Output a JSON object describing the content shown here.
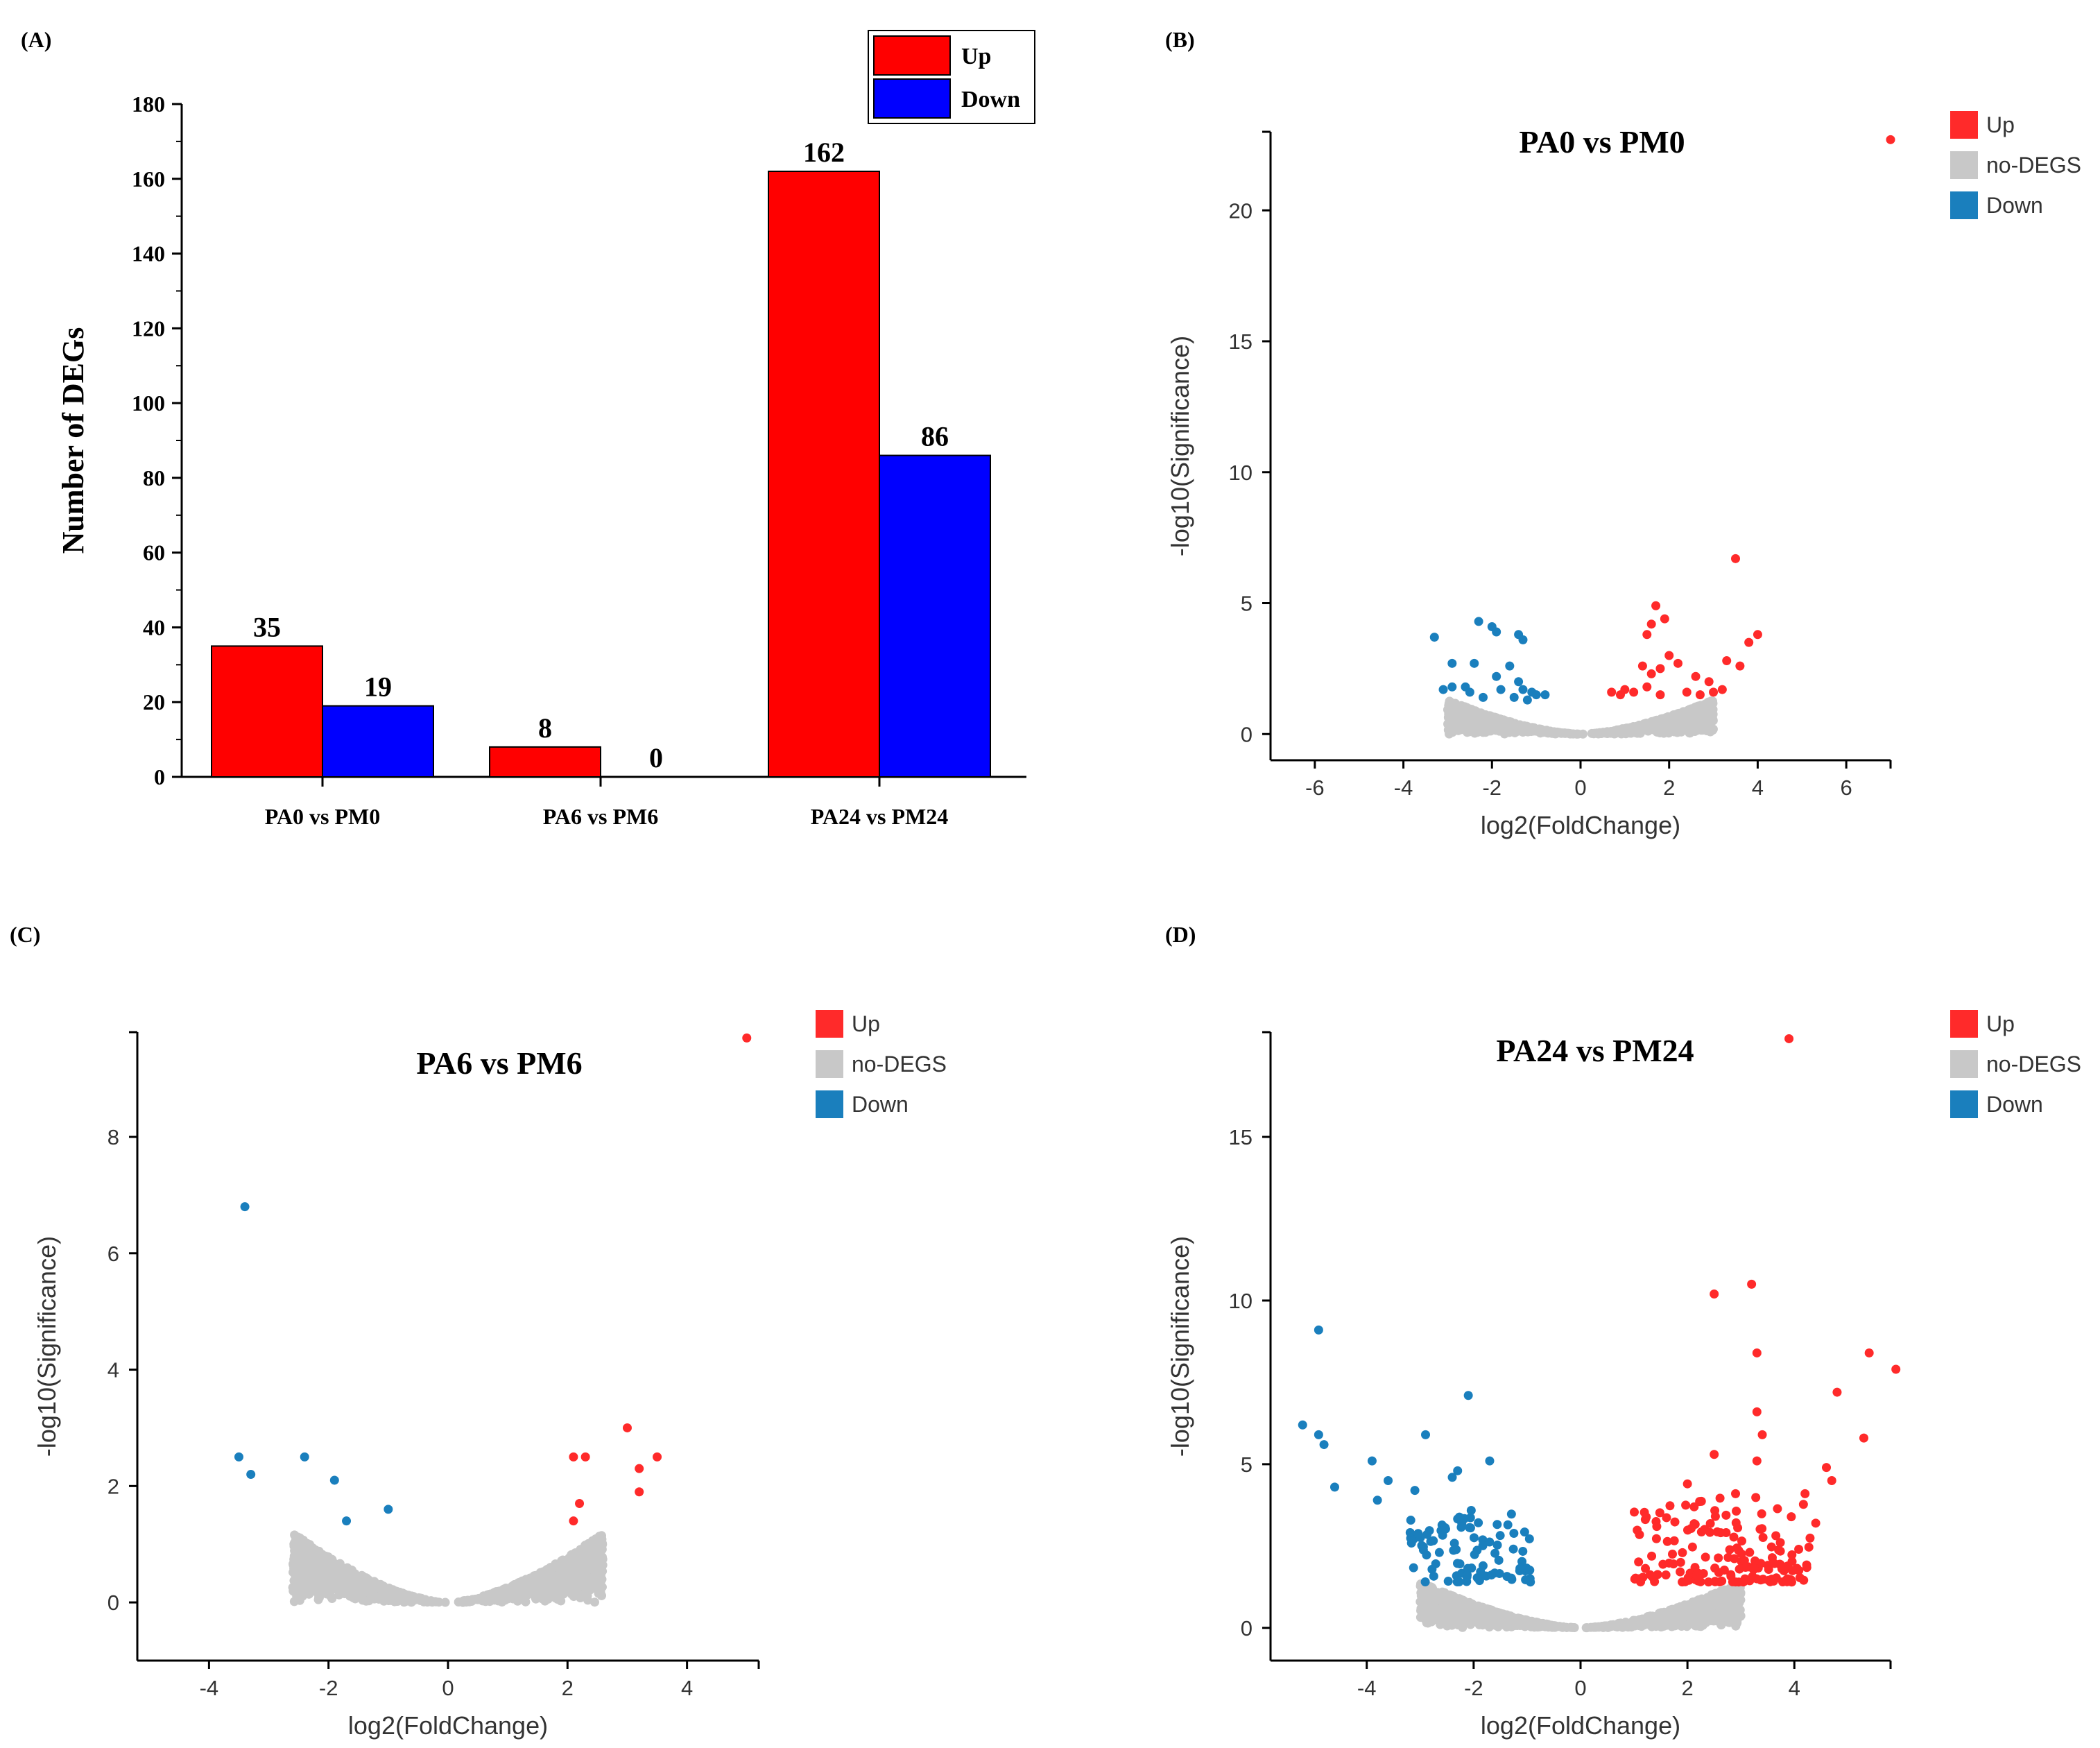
{
  "panels": {
    "A": {
      "label": "(A)",
      "chart_data": {
        "type": "bar",
        "title": "",
        "categories": [
          "PA0 vs PM0",
          "PA6 vs PM6",
          "PA24 vs PM24"
        ],
        "series": [
          {
            "name": "Up",
            "color": "#ff0000",
            "values": [
              35,
              8,
              162
            ]
          },
          {
            "name": "Down",
            "color": "#0000ff",
            "values": [
              19,
              0,
              86
            ]
          }
        ],
        "value_labels": [
          [
            "35",
            "8",
            "162"
          ],
          [
            "19",
            "0",
            "86"
          ]
        ],
        "xlabel": "",
        "ylabel": "Number of DEGs",
        "ylim": [
          0,
          180
        ],
        "yticks": [
          0,
          20,
          40,
          60,
          80,
          100,
          120,
          140,
          160,
          180
        ],
        "legend_position": "top-right"
      }
    },
    "B": {
      "label": "(B)",
      "chart_data": {
        "type": "scatter",
        "title": "PA0 vs PM0",
        "xlabel": "log2(FoldChange)",
        "ylabel": "-log10(Significance)",
        "xlim": [
          -7,
          7
        ],
        "ylim": [
          -1,
          23
        ],
        "xticks": [
          -6,
          -4,
          -2,
          0,
          2,
          4,
          6
        ],
        "yticks": [
          0,
          5,
          10,
          15,
          20
        ],
        "legend": [
          {
            "name": "Up",
            "color": "#ff2a2a"
          },
          {
            "name": "no-DEGS",
            "color": "#c8c8c8"
          },
          {
            "name": "Down",
            "color": "#1a7fbd"
          }
        ],
        "up_points": [
          [
            7.0,
            22.7
          ],
          [
            3.5,
            6.7
          ],
          [
            1.7,
            4.9
          ],
          [
            1.6,
            4.2
          ],
          [
            1.9,
            4.4
          ],
          [
            1.5,
            3.8
          ],
          [
            2.0,
            3.0
          ],
          [
            2.2,
            2.7
          ],
          [
            1.8,
            2.5
          ],
          [
            1.4,
            2.6
          ],
          [
            1.6,
            2.3
          ],
          [
            2.6,
            2.2
          ],
          [
            2.9,
            2.0
          ],
          [
            3.3,
            2.8
          ],
          [
            3.6,
            2.6
          ],
          [
            3.8,
            3.5
          ],
          [
            4.0,
            3.8
          ],
          [
            1.2,
            1.6
          ],
          [
            1.0,
            1.7
          ],
          [
            0.9,
            1.5
          ],
          [
            1.5,
            1.8
          ],
          [
            2.4,
            1.6
          ],
          [
            3.0,
            1.6
          ],
          [
            2.7,
            1.5
          ],
          [
            1.8,
            1.5
          ],
          [
            0.7,
            1.6
          ],
          [
            3.2,
            1.7
          ]
        ],
        "down_points": [
          [
            -2.0,
            4.1
          ],
          [
            -2.3,
            4.3
          ],
          [
            -3.3,
            3.7
          ],
          [
            -1.9,
            3.9
          ],
          [
            -1.4,
            3.8
          ],
          [
            -1.3,
            3.6
          ],
          [
            -2.9,
            2.7
          ],
          [
            -2.4,
            2.7
          ],
          [
            -1.6,
            2.6
          ],
          [
            -1.9,
            2.2
          ],
          [
            -1.4,
            2.0
          ],
          [
            -2.6,
            1.8
          ],
          [
            -3.1,
            1.7
          ],
          [
            -2.9,
            1.8
          ],
          [
            -2.5,
            1.6
          ],
          [
            -1.8,
            1.7
          ],
          [
            -1.3,
            1.7
          ],
          [
            -1.1,
            1.6
          ],
          [
            -1.0,
            1.5
          ],
          [
            -2.2,
            1.4
          ],
          [
            -1.5,
            1.4
          ],
          [
            -0.8,
            1.5
          ],
          [
            -1.2,
            1.3
          ]
        ],
        "null_envelope": {
          "x_half_width": 3.0,
          "y_max": 1.3
        }
      }
    },
    "C": {
      "label": "(C)",
      "chart_data": {
        "type": "scatter",
        "title": "PA6 vs PM6",
        "xlabel": "log2(FoldChange)",
        "ylabel": "-log10(Significance)",
        "xlim": [
          -5.2,
          5.2
        ],
        "ylim": [
          -1,
          9.8
        ],
        "xticks": [
          -4,
          -2,
          0,
          2,
          4
        ],
        "yticks": [
          0,
          2,
          4,
          6,
          8
        ],
        "legend": [
          {
            "name": "Up",
            "color": "#ff2a2a"
          },
          {
            "name": "no-DEGS",
            "color": "#c8c8c8"
          },
          {
            "name": "Down",
            "color": "#1a7fbd"
          }
        ],
        "up_points": [
          [
            5.0,
            9.7
          ],
          [
            3.0,
            3.0
          ],
          [
            2.3,
            2.5
          ],
          [
            2.1,
            2.5
          ],
          [
            3.5,
            2.5
          ],
          [
            3.2,
            2.3
          ],
          [
            3.2,
            1.9
          ],
          [
            2.2,
            1.7
          ],
          [
            2.1,
            1.4
          ]
        ],
        "down_points": [
          [
            -3.4,
            6.8
          ],
          [
            -3.5,
            2.5
          ],
          [
            -3.3,
            2.2
          ],
          [
            -2.4,
            2.5
          ],
          [
            -1.9,
            2.1
          ],
          [
            -1.0,
            1.6
          ],
          [
            -1.7,
            1.4
          ]
        ],
        "null_envelope": {
          "x_half_width": 2.6,
          "y_max": 1.2
        }
      }
    },
    "D": {
      "label": "(D)",
      "chart_data": {
        "type": "scatter",
        "title": "PA24 vs PM24",
        "xlabel": "log2(FoldChange)",
        "ylabel": "-log10(Significance)",
        "xlim": [
          -5.8,
          5.8
        ],
        "ylim": [
          -1,
          18.2
        ],
        "xticks": [
          -4,
          -2,
          0,
          2,
          4
        ],
        "yticks": [
          0,
          5,
          10,
          15
        ],
        "legend": [
          {
            "name": "Up",
            "color": "#ff2a2a"
          },
          {
            "name": "no-DEGS",
            "color": "#c8c8c8"
          },
          {
            "name": "Down",
            "color": "#1a7fbd"
          }
        ],
        "up_points": [
          [
            3.9,
            18.0
          ],
          [
            3.2,
            10.5
          ],
          [
            2.5,
            10.2
          ],
          [
            3.3,
            8.4
          ],
          [
            5.4,
            8.4
          ],
          [
            5.9,
            7.9
          ],
          [
            4.8,
            7.2
          ],
          [
            3.3,
            6.6
          ],
          [
            5.3,
            5.8
          ],
          [
            3.4,
            5.9
          ],
          [
            2.5,
            5.3
          ],
          [
            3.3,
            5.1
          ],
          [
            4.6,
            4.9
          ],
          [
            4.7,
            4.5
          ],
          [
            2.0,
            4.4
          ],
          [
            4.2,
            4.1
          ],
          [
            2.9,
            4.1
          ],
          [
            4.4,
            3.2
          ]
        ],
        "down_points": [
          [
            -4.9,
            9.1
          ],
          [
            -2.1,
            7.1
          ],
          [
            -5.2,
            6.2
          ],
          [
            -4.9,
            5.9
          ],
          [
            -4.8,
            5.6
          ],
          [
            -2.9,
            5.9
          ],
          [
            -1.7,
            5.1
          ],
          [
            -3.9,
            5.1
          ],
          [
            -2.3,
            4.8
          ],
          [
            -3.6,
            4.5
          ],
          [
            -4.6,
            4.3
          ],
          [
            -3.8,
            3.9
          ],
          [
            -2.4,
            4.6
          ],
          [
            -3.1,
            4.2
          ]
        ],
        "dense_clusters": [
          {
            "series": "Up",
            "x_range": [
              1.0,
              4.3
            ],
            "y_range": [
              1.4,
              4.0
            ],
            "count": 160
          },
          {
            "series": "Down",
            "x_range": [
              -3.2,
              -0.9
            ],
            "y_range": [
              1.4,
              3.6
            ],
            "count": 90
          }
        ],
        "null_envelope": {
          "x_half_width": 3.0,
          "y_max": 1.4
        }
      }
    }
  }
}
